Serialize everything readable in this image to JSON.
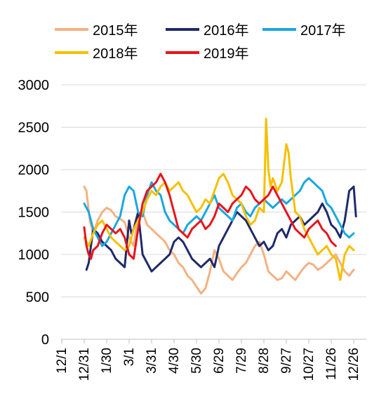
{
  "chart_data": {
    "type": "line",
    "x_tick_labels": [
      "12/1",
      "12/31",
      "1/30",
      "3/1",
      "3/31",
      "4/30",
      "5/30",
      "6/29",
      "7/29",
      "8/28",
      "9/27",
      "10/27",
      "11/26",
      "12/26"
    ],
    "y_tick_labels": [
      "0",
      "500",
      "1000",
      "1500",
      "2000",
      "2500",
      "3000"
    ],
    "ylim": [
      0,
      3000
    ],
    "xlim": [
      0,
      13.2
    ],
    "grid": "horizontal",
    "legend_position": "top",
    "series": [
      {
        "name": "2015年",
        "color": "#F4B183",
        "x": [
          1.0,
          1.1,
          1.25,
          1.4,
          1.6,
          1.8,
          2.0,
          2.2,
          2.4,
          2.6,
          2.8,
          3.0,
          3.2,
          3.4,
          3.6,
          3.8,
          4.0,
          4.2,
          4.4,
          4.6,
          4.8,
          5.0,
          5.2,
          5.4,
          5.6,
          5.8,
          6.0,
          6.2,
          6.4,
          6.6,
          6.8,
          7.0,
          7.2,
          7.4,
          7.6,
          7.8,
          8.0,
          8.2,
          8.4,
          8.6,
          8.8,
          9.0,
          9.2,
          9.4,
          9.6,
          9.8,
          10.0,
          10.2,
          10.4,
          10.6,
          10.8,
          11.0,
          11.2,
          11.4,
          11.6,
          11.8,
          12.0,
          12.2,
          12.4,
          12.6,
          12.8,
          13.0
        ],
        "values": [
          1800,
          1750,
          1400,
          1250,
          1400,
          1500,
          1550,
          1520,
          1450,
          1420,
          1380,
          1200,
          1100,
          1450,
          1500,
          1350,
          1300,
          1250,
          1200,
          1150,
          1050,
          1000,
          900,
          850,
          750,
          700,
          620,
          540,
          600,
          800,
          1050,
          950,
          800,
          750,
          700,
          780,
          850,
          900,
          1000,
          1100,
          1150,
          1000,
          800,
          750,
          700,
          720,
          800,
          750,
          700,
          780,
          850,
          900,
          880,
          820,
          850,
          900,
          950,
          1000,
          900,
          800,
          750,
          820
        ]
      },
      {
        "name": "2016年",
        "color": "#1F2A6B",
        "x": [
          1.1,
          1.2,
          1.3,
          1.4,
          1.6,
          1.8,
          2.0,
          2.2,
          2.4,
          2.6,
          2.8,
          3.0,
          3.1,
          3.2,
          3.4,
          3.6,
          3.8,
          4.0,
          4.2,
          4.4,
          4.6,
          4.8,
          5.0,
          5.2,
          5.4,
          5.6,
          5.8,
          6.0,
          6.2,
          6.4,
          6.6,
          6.8,
          7.0,
          7.2,
          7.4,
          7.6,
          7.8,
          8.0,
          8.2,
          8.4,
          8.6,
          8.8,
          9.0,
          9.2,
          9.4,
          9.6,
          9.8,
          10.0,
          10.2,
          10.4,
          10.6,
          10.8,
          11.0,
          11.2,
          11.4,
          11.6,
          11.8,
          12.0,
          12.2,
          12.4,
          12.6,
          12.8,
          13.0,
          13.1
        ],
        "values": [
          820,
          900,
          1100,
          1300,
          1250,
          1150,
          1100,
          1050,
          950,
          900,
          850,
          1400,
          1250,
          1300,
          1500,
          1000,
          900,
          800,
          850,
          900,
          950,
          1000,
          1150,
          1200,
          1150,
          1050,
          950,
          900,
          850,
          900,
          950,
          850,
          1100,
          1200,
          1300,
          1400,
          1500,
          1450,
          1400,
          1300,
          1200,
          1100,
          1150,
          1050,
          1100,
          1250,
          1300,
          1200,
          1350,
          1400,
          1450,
          1350,
          1400,
          1450,
          1500,
          1600,
          1500,
          1350,
          1300,
          1200,
          1400,
          1750,
          1800,
          1450
        ]
      },
      {
        "name": "2017年",
        "color": "#1AA7E0",
        "x": [
          1.0,
          1.1,
          1.2,
          1.4,
          1.6,
          1.8,
          2.0,
          2.2,
          2.4,
          2.6,
          2.8,
          3.0,
          3.2,
          3.4,
          3.6,
          3.8,
          4.0,
          4.2,
          4.4,
          4.6,
          4.8,
          5.0,
          5.2,
          5.4,
          5.6,
          5.8,
          6.0,
          6.2,
          6.4,
          6.6,
          6.8,
          7.0,
          7.2,
          7.4,
          7.6,
          7.8,
          8.0,
          8.2,
          8.4,
          8.6,
          8.8,
          9.0,
          9.2,
          9.4,
          9.6,
          9.8,
          10.0,
          10.2,
          10.4,
          10.6,
          10.8,
          11.0,
          11.2,
          11.4,
          11.6,
          11.8,
          12.0,
          12.2,
          12.4,
          12.6,
          12.8,
          13.0
        ],
        "values": [
          1600,
          1550,
          1500,
          1300,
          1200,
          1100,
          1150,
          1250,
          1350,
          1450,
          1700,
          1800,
          1750,
          1500,
          1450,
          1700,
          1850,
          1750,
          1700,
          1500,
          1400,
          1350,
          1300,
          1250,
          1350,
          1400,
          1450,
          1400,
          1500,
          1600,
          1700,
          1550,
          1500,
          1450,
          1400,
          1550,
          1600,
          1500,
          1450,
          1550,
          1600,
          1650,
          1600,
          1550,
          1600,
          1650,
          1600,
          1650,
          1700,
          1750,
          1850,
          1900,
          1850,
          1800,
          1750,
          1600,
          1550,
          1450,
          1350,
          1250,
          1200,
          1250
        ]
      },
      {
        "name": "2018年",
        "color": "#F5C000",
        "x": [
          1.0,
          1.1,
          1.2,
          1.4,
          1.6,
          1.8,
          2.0,
          2.2,
          2.4,
          2.6,
          2.8,
          3.0,
          3.2,
          3.4,
          3.6,
          3.8,
          4.0,
          4.2,
          4.4,
          4.6,
          4.8,
          5.0,
          5.2,
          5.4,
          5.6,
          5.8,
          6.0,
          6.2,
          6.4,
          6.6,
          6.8,
          7.0,
          7.2,
          7.4,
          7.6,
          7.8,
          8.0,
          8.2,
          8.4,
          8.6,
          8.8,
          9.0,
          9.1,
          9.2,
          9.3,
          9.4,
          9.6,
          9.8,
          10.0,
          10.1,
          10.2,
          10.4,
          10.6,
          10.8,
          11.0,
          11.2,
          11.4,
          11.6,
          11.8,
          12.0,
          12.2,
          12.4,
          12.6,
          12.8,
          13.0
        ],
        "values": [
          1200,
          1150,
          1100,
          1250,
          1350,
          1400,
          1300,
          1200,
          1150,
          1100,
          1050,
          1100,
          1300,
          1400,
          1500,
          1650,
          1750,
          1700,
          1800,
          1850,
          1750,
          1800,
          1850,
          1750,
          1700,
          1600,
          1500,
          1550,
          1650,
          1600,
          1750,
          1900,
          1950,
          1850,
          1700,
          1650,
          1600,
          1450,
          1350,
          1400,
          1550,
          1500,
          2600,
          2000,
          1800,
          1900,
          1750,
          1850,
          2300,
          2200,
          1900,
          1500,
          1450,
          1300,
          1200,
          1100,
          1000,
          1050,
          1100,
          1000,
          950,
          700,
          1000,
          1100,
          1050
        ]
      },
      {
        "name": "2019年",
        "color": "#E8141B",
        "x": [
          1.0,
          1.1,
          1.2,
          1.3,
          1.4,
          1.6,
          1.8,
          2.0,
          2.2,
          2.4,
          2.6,
          2.8,
          3.0,
          3.2,
          3.4,
          3.6,
          3.8,
          4.0,
          4.2,
          4.4,
          4.6,
          4.8,
          5.0,
          5.2,
          5.4,
          5.6,
          5.8,
          6.0,
          6.2,
          6.4,
          6.6,
          6.8,
          7.0,
          7.2,
          7.4,
          7.6,
          7.8,
          8.0,
          8.2,
          8.4,
          8.6,
          8.8,
          9.0,
          9.2,
          9.4,
          9.6,
          9.8,
          10.0,
          10.2,
          10.4,
          10.6,
          10.8,
          11.0,
          11.2,
          11.4,
          11.6,
          11.8,
          12.0,
          12.2
        ],
        "values": [
          1320,
          1100,
          1000,
          950,
          1050,
          1100,
          1250,
          1350,
          1300,
          1250,
          1300,
          1200,
          1000,
          950,
          1300,
          1600,
          1750,
          1800,
          1850,
          1950,
          1850,
          1700,
          1500,
          1300,
          1250,
          1200,
          1300,
          1350,
          1400,
          1300,
          1350,
          1450,
          1600,
          1550,
          1500,
          1600,
          1650,
          1700,
          1800,
          1750,
          1650,
          1600,
          1650,
          1700,
          1800,
          1700,
          1600,
          1500,
          1400,
          1300,
          1250,
          1200,
          1300,
          1350,
          1400,
          1300,
          1250,
          1150,
          1100
        ]
      }
    ]
  }
}
